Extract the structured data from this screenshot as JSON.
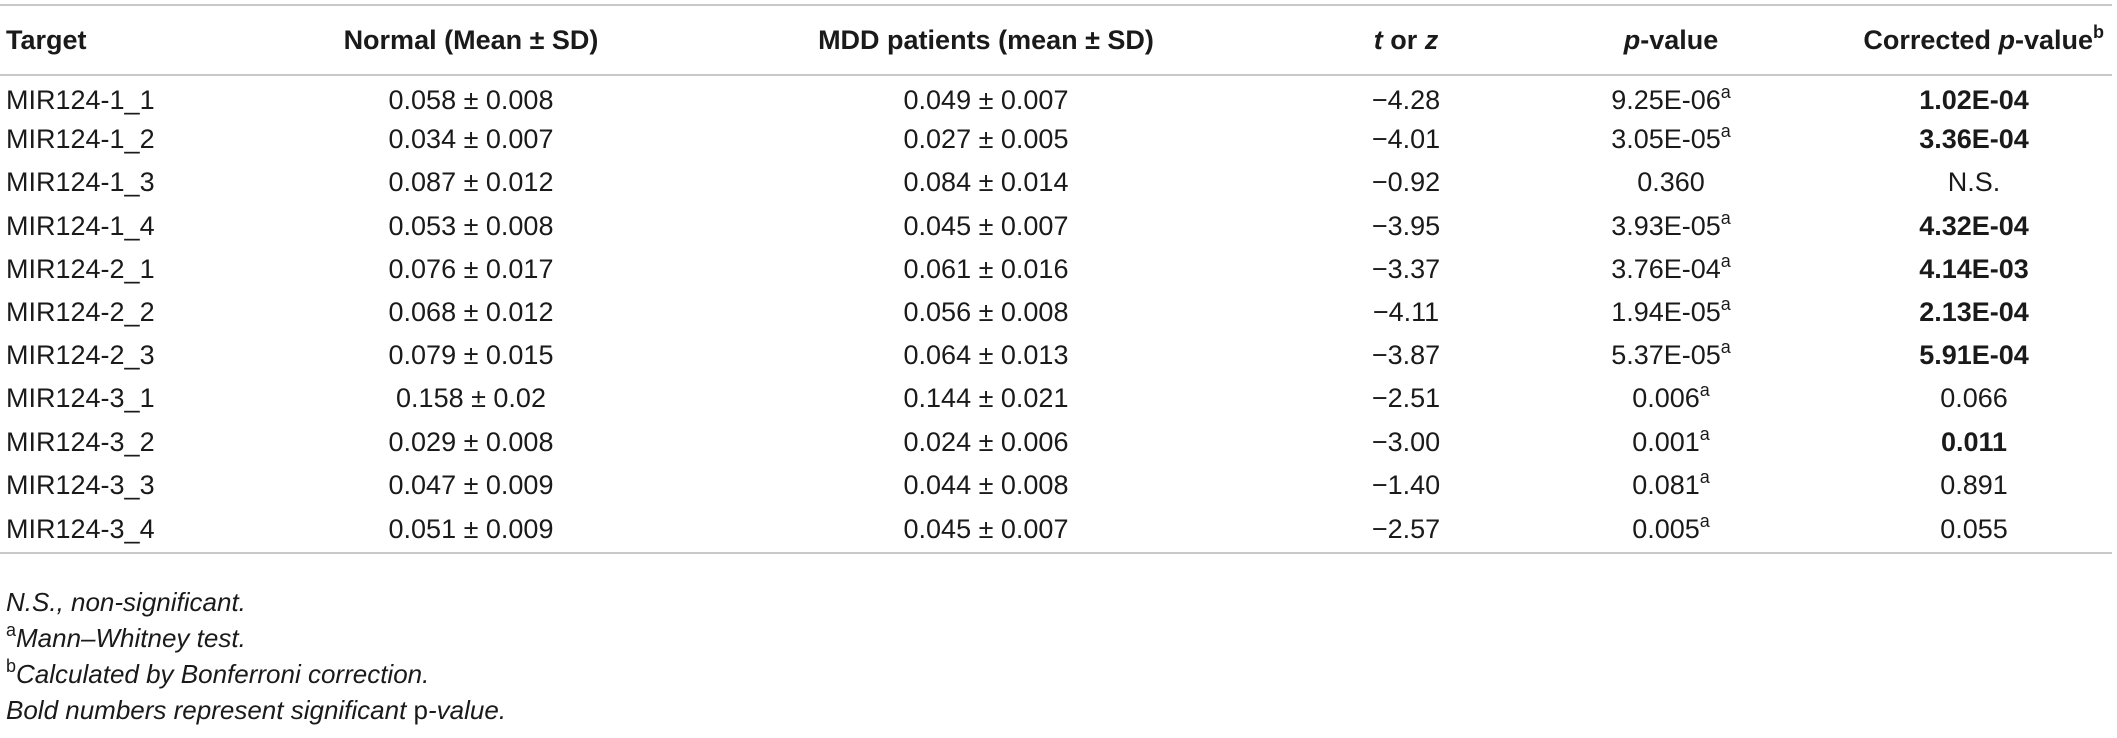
{
  "columns": {
    "target": "Target",
    "normal": "Normal (Mean ± SD)",
    "mdd": "MDD patients (mean ± SD)",
    "t_or_z_t": "t",
    "t_or_z_or": " or ",
    "t_or_z_z": "z",
    "p_value_p": "p",
    "p_value_rest": "-value",
    "corrected_prefix": "Corrected ",
    "corrected_p": "p",
    "corrected_rest": "-value",
    "corrected_sup": "b"
  },
  "rows": [
    {
      "target": "MIR124-1_1",
      "normal": "0.058 ± 0.008",
      "mdd": "0.049 ± 0.007",
      "t": "−4.28",
      "p": "9.25E-06",
      "p_sup": "a",
      "corrected": "1.02E-04",
      "bold": true
    },
    {
      "target": "MIR124-1_2",
      "normal": "0.034 ± 0.007",
      "mdd": "0.027 ± 0.005",
      "t": "−4.01",
      "p": "3.05E-05",
      "p_sup": "a",
      "corrected": "3.36E-04",
      "bold": true
    },
    {
      "target": "MIR124-1_3",
      "normal": "0.087 ± 0.012",
      "mdd": "0.084 ± 0.014",
      "t": "−0.92",
      "p": "0.360",
      "p_sup": "",
      "corrected": "N.S.",
      "bold": false
    },
    {
      "target": "MIR124-1_4",
      "normal": "0.053 ± 0.008",
      "mdd": "0.045 ± 0.007",
      "t": "−3.95",
      "p": "3.93E-05",
      "p_sup": "a",
      "corrected": "4.32E-04",
      "bold": true
    },
    {
      "target": "MIR124-2_1",
      "normal": "0.076 ± 0.017",
      "mdd": "0.061 ± 0.016",
      "t": "−3.37",
      "p": "3.76E-04",
      "p_sup": "a",
      "corrected": "4.14E-03",
      "bold": true
    },
    {
      "target": "MIR124-2_2",
      "normal": "0.068 ± 0.012",
      "mdd": "0.056 ± 0.008",
      "t": "−4.11",
      "p": "1.94E-05",
      "p_sup": "a",
      "corrected": "2.13E-04",
      "bold": true
    },
    {
      "target": "MIR124-2_3",
      "normal": "0.079 ± 0.015",
      "mdd": "0.064 ± 0.013",
      "t": "−3.87",
      "p": "5.37E-05",
      "p_sup": "a",
      "corrected": "5.91E-04",
      "bold": true
    },
    {
      "target": "MIR124-3_1",
      "normal": "0.158 ± 0.02",
      "mdd": "0.144 ± 0.021",
      "t": "−2.51",
      "p": "0.006",
      "p_sup": "a",
      "corrected": "0.066",
      "bold": false
    },
    {
      "target": "MIR124-3_2",
      "normal": "0.029 ± 0.008",
      "mdd": "0.024 ± 0.006",
      "t": "−3.00",
      "p": "0.001",
      "p_sup": "a",
      "corrected": "0.011",
      "bold": true
    },
    {
      "target": "MIR124-3_3",
      "normal": "0.047 ± 0.009",
      "mdd": "0.044 ± 0.008",
      "t": "−1.40",
      "p": "0.081",
      "p_sup": "a",
      "corrected": "0.891",
      "bold": false
    },
    {
      "target": "MIR124-3_4",
      "normal": "0.051 ± 0.009",
      "mdd": "0.045 ± 0.007",
      "t": "−2.57",
      "p": "0.005",
      "p_sup": "a",
      "corrected": "0.055",
      "bold": false
    }
  ],
  "footnotes": {
    "ns": "N.S., non-significant.",
    "a_mark": "a",
    "a_text": "Mann–Whitney test.",
    "b_mark": "b",
    "b_text": "Calculated by Bonferroni correction.",
    "bold_pre": "Bold numbers represent significant ",
    "bold_p": "p",
    "bold_post": "-value."
  },
  "colors": {
    "rule": "#c8c8c8",
    "text": "#1a1a1a"
  }
}
